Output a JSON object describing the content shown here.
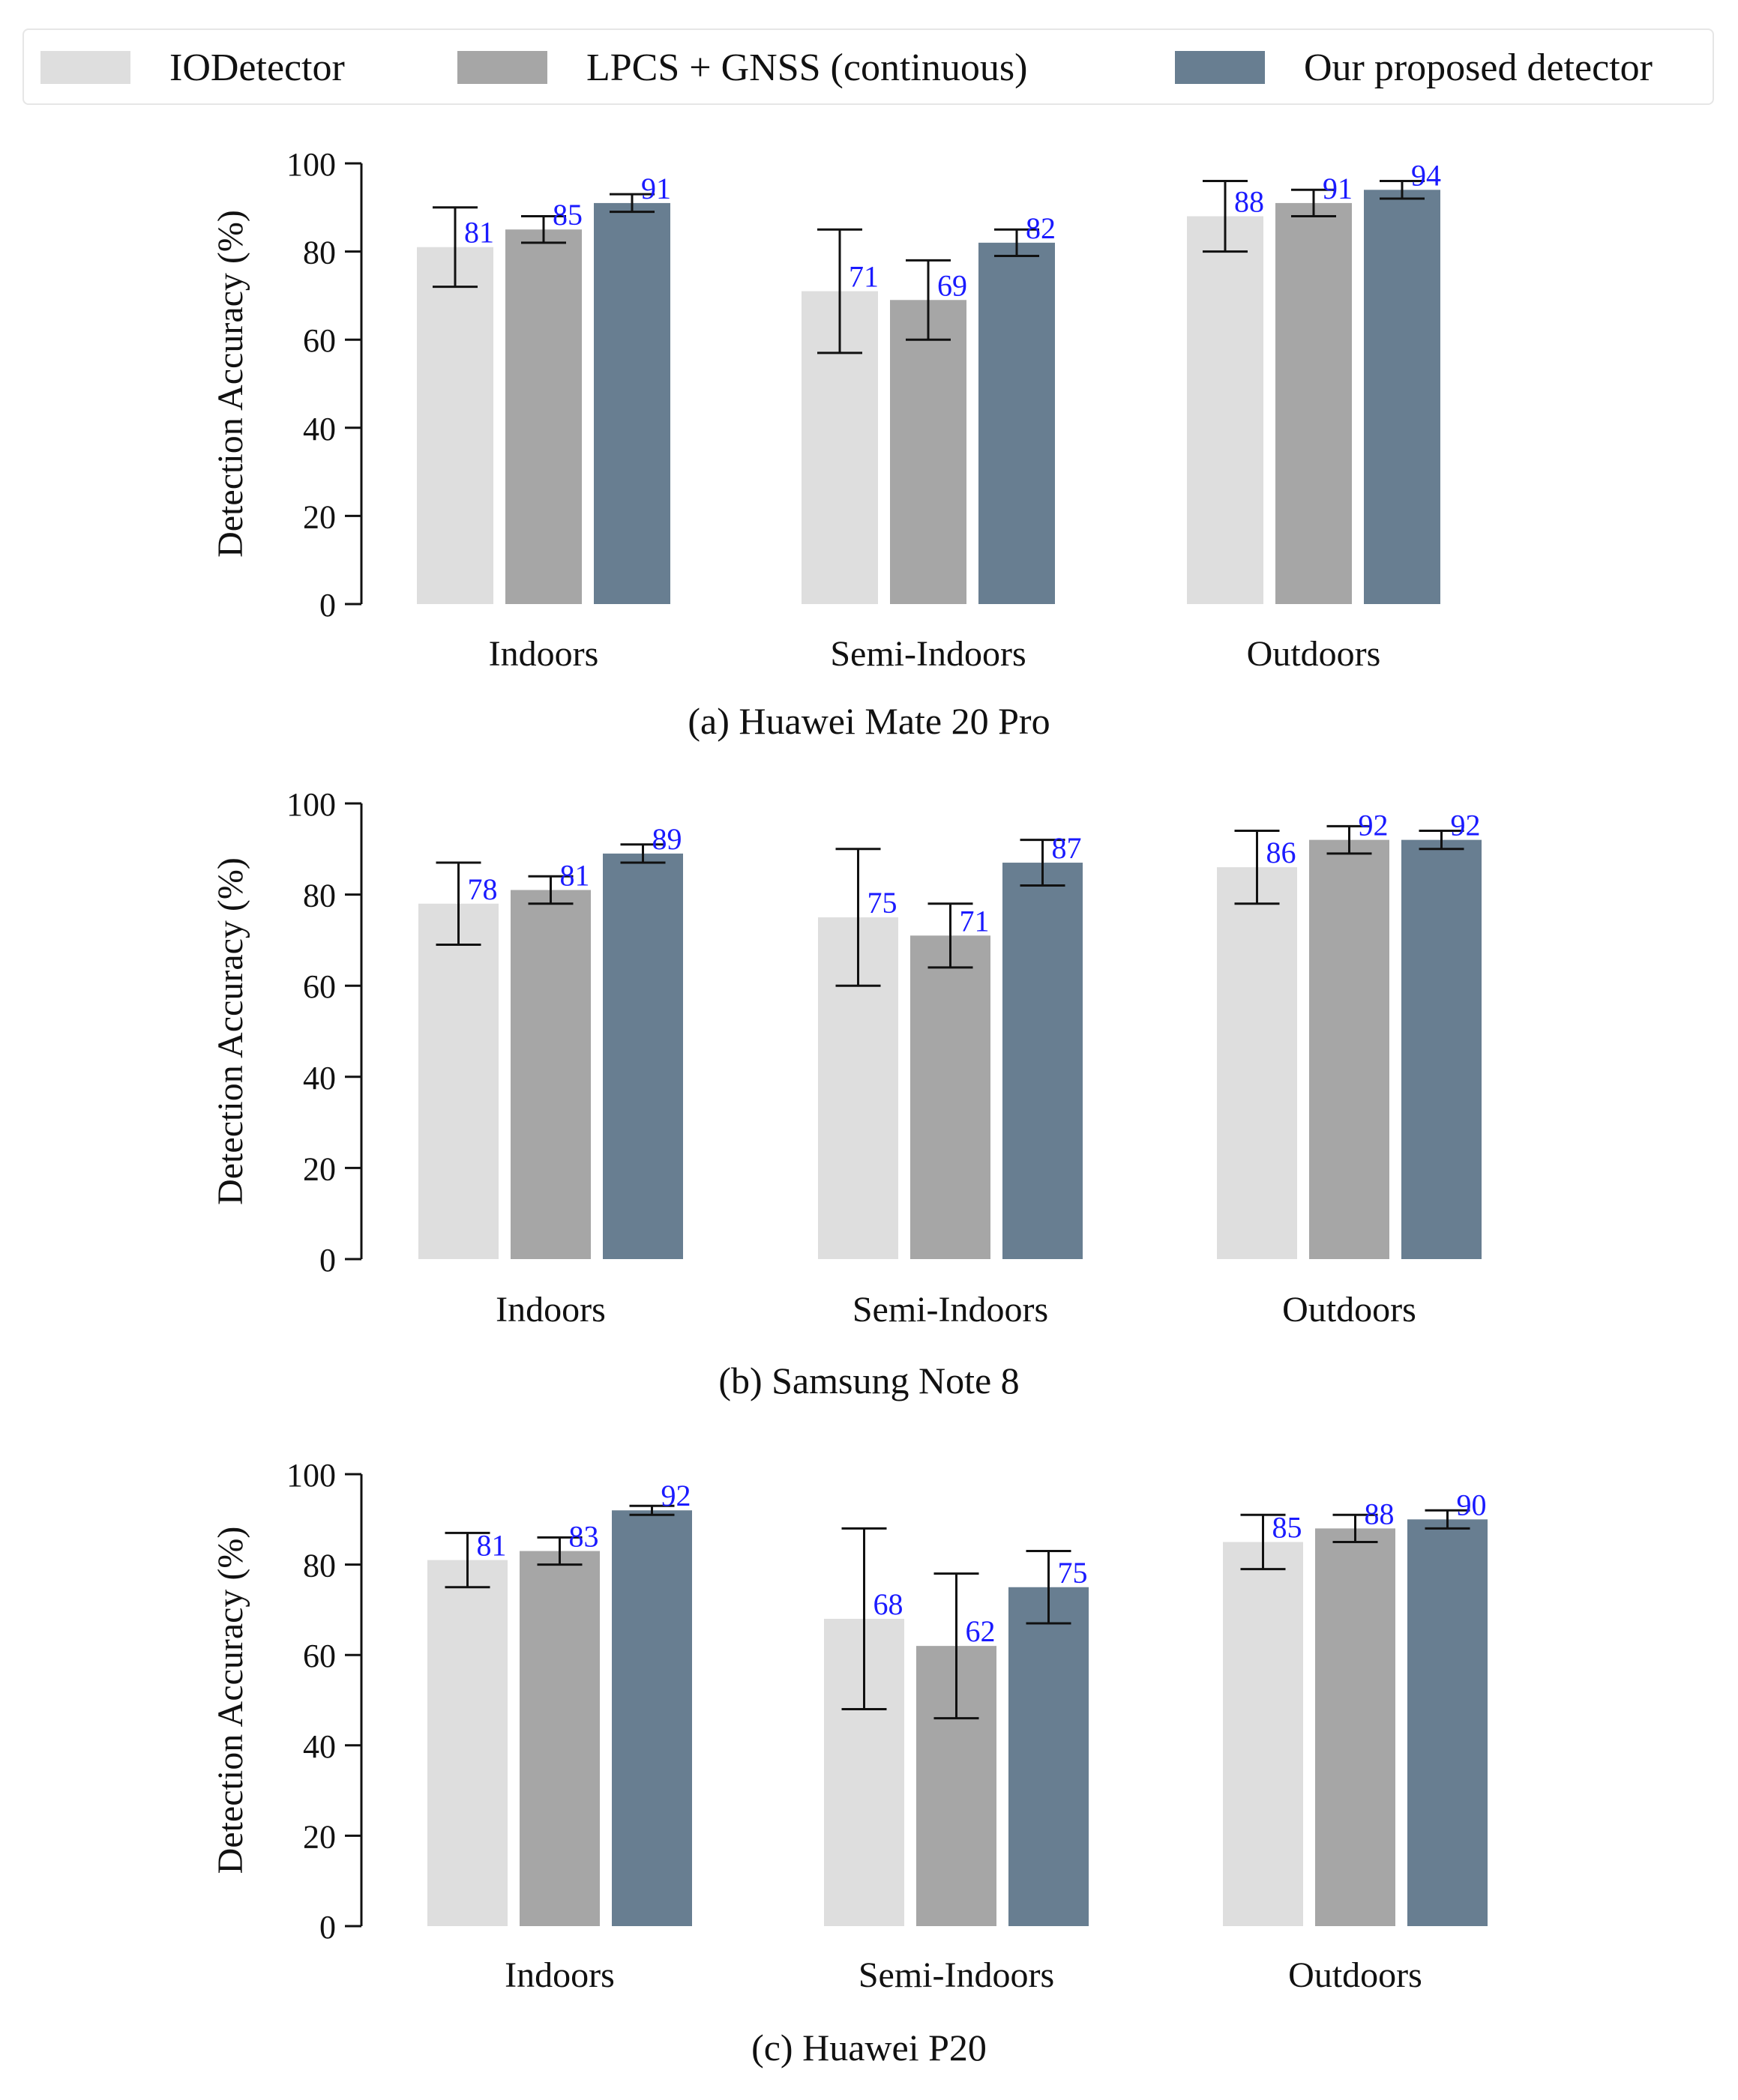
{
  "legend": {
    "items": [
      {
        "label": "IODetector",
        "color": "#dedede"
      },
      {
        "label": "LPCS + GNSS (continuous)",
        "color": "#a6a6a6"
      },
      {
        "label": "Our proposed detector",
        "color": "#687e91"
      }
    ]
  },
  "colors": {
    "value_label": "#1a1aff",
    "axis": "#111111"
  },
  "chart_data": [
    {
      "type": "bar",
      "title": "(a) Huawei Mate 20 Pro",
      "ylabel": "Detection Accuracy (%)",
      "ylim": [
        0,
        100
      ],
      "yticks": [
        "0",
        "20",
        "40",
        "60",
        "80",
        "100"
      ],
      "categories": [
        "Indoors",
        "Semi-Indoors",
        "Outdoors"
      ],
      "series": [
        {
          "name": "IODetector",
          "values": [
            81,
            71,
            88
          ],
          "err_low": [
            72,
            57,
            80
          ],
          "err_high": [
            90,
            85,
            96
          ]
        },
        {
          "name": "LPCS + GNSS (continuous)",
          "values": [
            85,
            69,
            91
          ],
          "err_low": [
            82,
            60,
            88
          ],
          "err_high": [
            88,
            78,
            94
          ]
        },
        {
          "name": "Our proposed detector",
          "values": [
            91,
            82,
            94
          ],
          "err_low": [
            89,
            79,
            92
          ],
          "err_high": [
            93,
            85,
            96
          ]
        }
      ],
      "value_labels": [
        [
          "81",
          "71",
          "88"
        ],
        [
          "85",
          "69",
          "91"
        ],
        [
          "91",
          "82",
          "94"
        ]
      ]
    },
    {
      "type": "bar",
      "title": "(b) Samsung Note 8",
      "ylabel": "Detection Accuracy (%)",
      "ylim": [
        0,
        100
      ],
      "yticks": [
        "0",
        "20",
        "40",
        "60",
        "80",
        "100"
      ],
      "categories": [
        "Indoors",
        "Semi-Indoors",
        "Outdoors"
      ],
      "series": [
        {
          "name": "IODetector",
          "values": [
            78,
            75,
            86
          ],
          "err_low": [
            69,
            60,
            78
          ],
          "err_high": [
            87,
            90,
            94
          ]
        },
        {
          "name": "LPCS + GNSS (continuous)",
          "values": [
            81,
            71,
            92
          ],
          "err_low": [
            78,
            64,
            89
          ],
          "err_high": [
            84,
            78,
            95
          ]
        },
        {
          "name": "Our proposed detector",
          "values": [
            89,
            87,
            92
          ],
          "err_low": [
            87,
            82,
            90
          ],
          "err_high": [
            91,
            92,
            94
          ]
        }
      ],
      "value_labels": [
        [
          "78",
          "75",
          "86"
        ],
        [
          "81",
          "71",
          "92"
        ],
        [
          "89",
          "87",
          "92"
        ]
      ]
    },
    {
      "type": "bar",
      "title": "(c) Huawei P20",
      "ylabel": "Detection Accuracy (%)",
      "ylim": [
        0,
        100
      ],
      "yticks": [
        "0",
        "20",
        "40",
        "60",
        "80",
        "100"
      ],
      "categories": [
        "Indoors",
        "Semi-Indoors",
        "Outdoors"
      ],
      "series": [
        {
          "name": "IODetector",
          "values": [
            81,
            68,
            85
          ],
          "err_low": [
            75,
            48,
            79
          ],
          "err_high": [
            87,
            88,
            91
          ]
        },
        {
          "name": "LPCS + GNSS (continuous)",
          "values": [
            83,
            62,
            88
          ],
          "err_low": [
            80,
            46,
            85
          ],
          "err_high": [
            86,
            78,
            91
          ]
        },
        {
          "name": "Our proposed detector",
          "values": [
            92,
            75,
            90
          ],
          "err_low": [
            91,
            67,
            88
          ],
          "err_high": [
            93,
            83,
            92
          ]
        }
      ],
      "value_labels": [
        [
          "81",
          "68",
          "85"
        ],
        [
          "83",
          "62",
          "88"
        ],
        [
          "92",
          "75",
          "90"
        ]
      ]
    }
  ]
}
